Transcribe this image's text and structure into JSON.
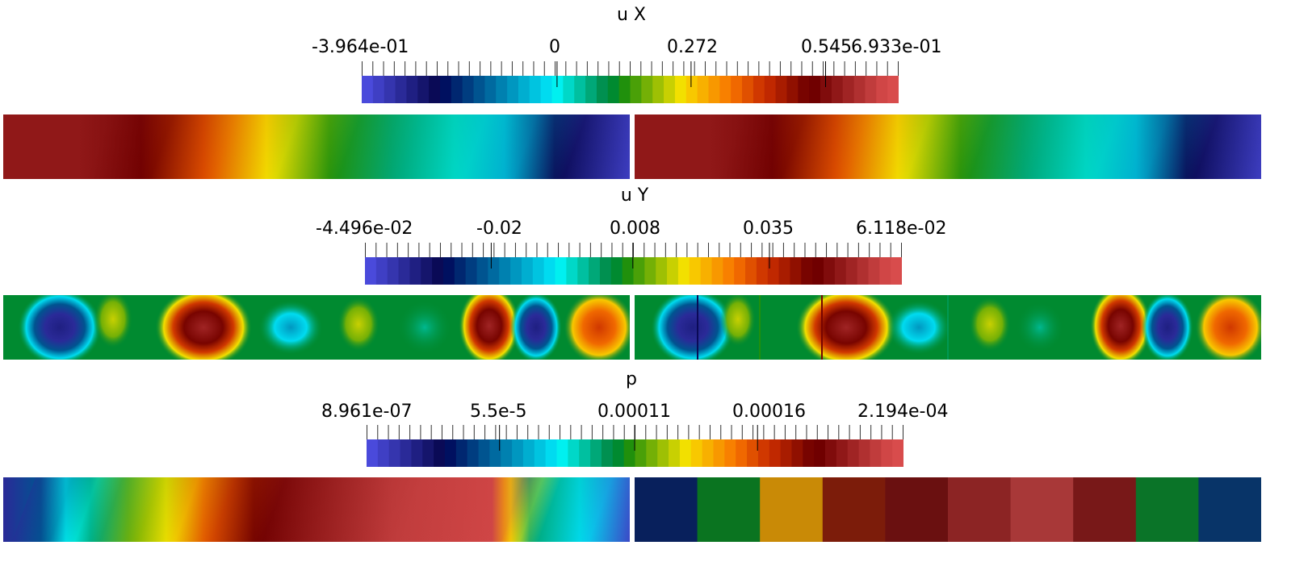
{
  "palette": [
    "#4a4adb",
    "#3f3fc4",
    "#3535ae",
    "#2a2a98",
    "#1f1f82",
    "#15156c",
    "#0a0a56",
    "#001060",
    "#002770",
    "#003d80",
    "#005490",
    "#006aa0",
    "#0081b0",
    "#0097c0",
    "#00aed0",
    "#00c4e0",
    "#00dbf0",
    "#00f0f0",
    "#00d8c8",
    "#00c0a0",
    "#00a878",
    "#009050",
    "#008a30",
    "#20900c",
    "#4aa008",
    "#74b006",
    "#9ec004",
    "#c8d002",
    "#f2e000",
    "#f8c800",
    "#f8b000",
    "#f89800",
    "#f88000",
    "#f06800",
    "#e05000",
    "#d03800",
    "#c02800",
    "#a81c00",
    "#901000",
    "#780400",
    "#700000",
    "#800c0c",
    "#901818",
    "#a02424",
    "#b03030",
    "#c03c3c",
    "#d04646",
    "#d84c4c"
  ],
  "chart_data": [
    {
      "type": "heatmap",
      "title": "u X",
      "colorbar": {
        "min_label": "-3.964e-01",
        "max_label": "6.933e-01",
        "ticks": [
          "0",
          "0.272",
          "0.545"
        ],
        "min": -0.3964,
        "max": 0.6933,
        "tick_values": [
          0,
          0.272,
          0.545
        ]
      },
      "panels": [
        {
          "name": "left",
          "stops": [
            [
              0,
              42
            ],
            [
              0.12,
              42
            ],
            [
              0.22,
              40
            ],
            [
              0.32,
              34
            ],
            [
              0.42,
              28
            ],
            [
              0.52,
              23
            ],
            [
              0.62,
              20
            ],
            [
              0.72,
              18
            ],
            [
              0.8,
              14
            ],
            [
              0.88,
              6
            ],
            [
              1,
              1
            ]
          ]
        },
        {
          "name": "right",
          "stops": [
            [
              0,
              42
            ],
            [
              0.12,
              42
            ],
            [
              0.22,
              40
            ],
            [
              0.32,
              34
            ],
            [
              0.42,
              28
            ],
            [
              0.52,
              23
            ],
            [
              0.62,
              20
            ],
            [
              0.72,
              18
            ],
            [
              0.8,
              14
            ],
            [
              0.88,
              6
            ],
            [
              1,
              1
            ]
          ]
        }
      ]
    },
    {
      "type": "heatmap",
      "title": "u Y",
      "colorbar": {
        "min_label": "-4.496e-02",
        "max_label": "6.118e-02",
        "ticks": [
          "-0.02",
          "0.008",
          "0.035"
        ],
        "min": -0.04496,
        "max": 0.06118,
        "tick_values": [
          -0.02,
          0.008,
          0.035
        ]
      },
      "panels": [
        {
          "name": "left",
          "stops": [
            [
              0,
              22
            ],
            [
              1,
              22
            ]
          ]
        },
        {
          "name": "right",
          "stops": [
            [
              0,
              22
            ],
            [
              1,
              22
            ]
          ]
        }
      ]
    },
    {
      "type": "heatmap",
      "title": "p",
      "colorbar": {
        "min_label": "8.961e-07",
        "max_label": "2.194e-04",
        "ticks": [
          "5.5e-5",
          "0.00011",
          "0.00016"
        ],
        "min": 8.961e-07,
        "max": 0.0002194,
        "tick_values": [
          5.5e-05,
          0.00011,
          0.00016
        ]
      },
      "panels": [
        {
          "name": "left",
          "stops": [
            [
              0,
              3
            ],
            [
              0.06,
              10
            ],
            [
              0.1,
              17
            ],
            [
              0.14,
              20
            ],
            [
              0.2,
              25
            ],
            [
              0.26,
              28
            ],
            [
              0.32,
              34
            ],
            [
              0.4,
              40
            ],
            [
              0.48,
              42
            ],
            [
              0.62,
              45
            ],
            [
              0.78,
              46
            ],
            [
              0.8,
              30
            ],
            [
              0.81,
              28
            ],
            [
              0.84,
              20
            ],
            [
              0.92,
              16
            ],
            [
              1,
              1
            ]
          ]
        },
        {
          "name": "right",
          "blocks": [
            "#08205c",
            "#0a7420",
            "#c98a06",
            "#7c1c0a",
            "#6a1010",
            "#8c2424",
            "#a83838",
            "#781818",
            "#0a7428",
            "#083468"
          ]
        }
      ]
    }
  ]
}
